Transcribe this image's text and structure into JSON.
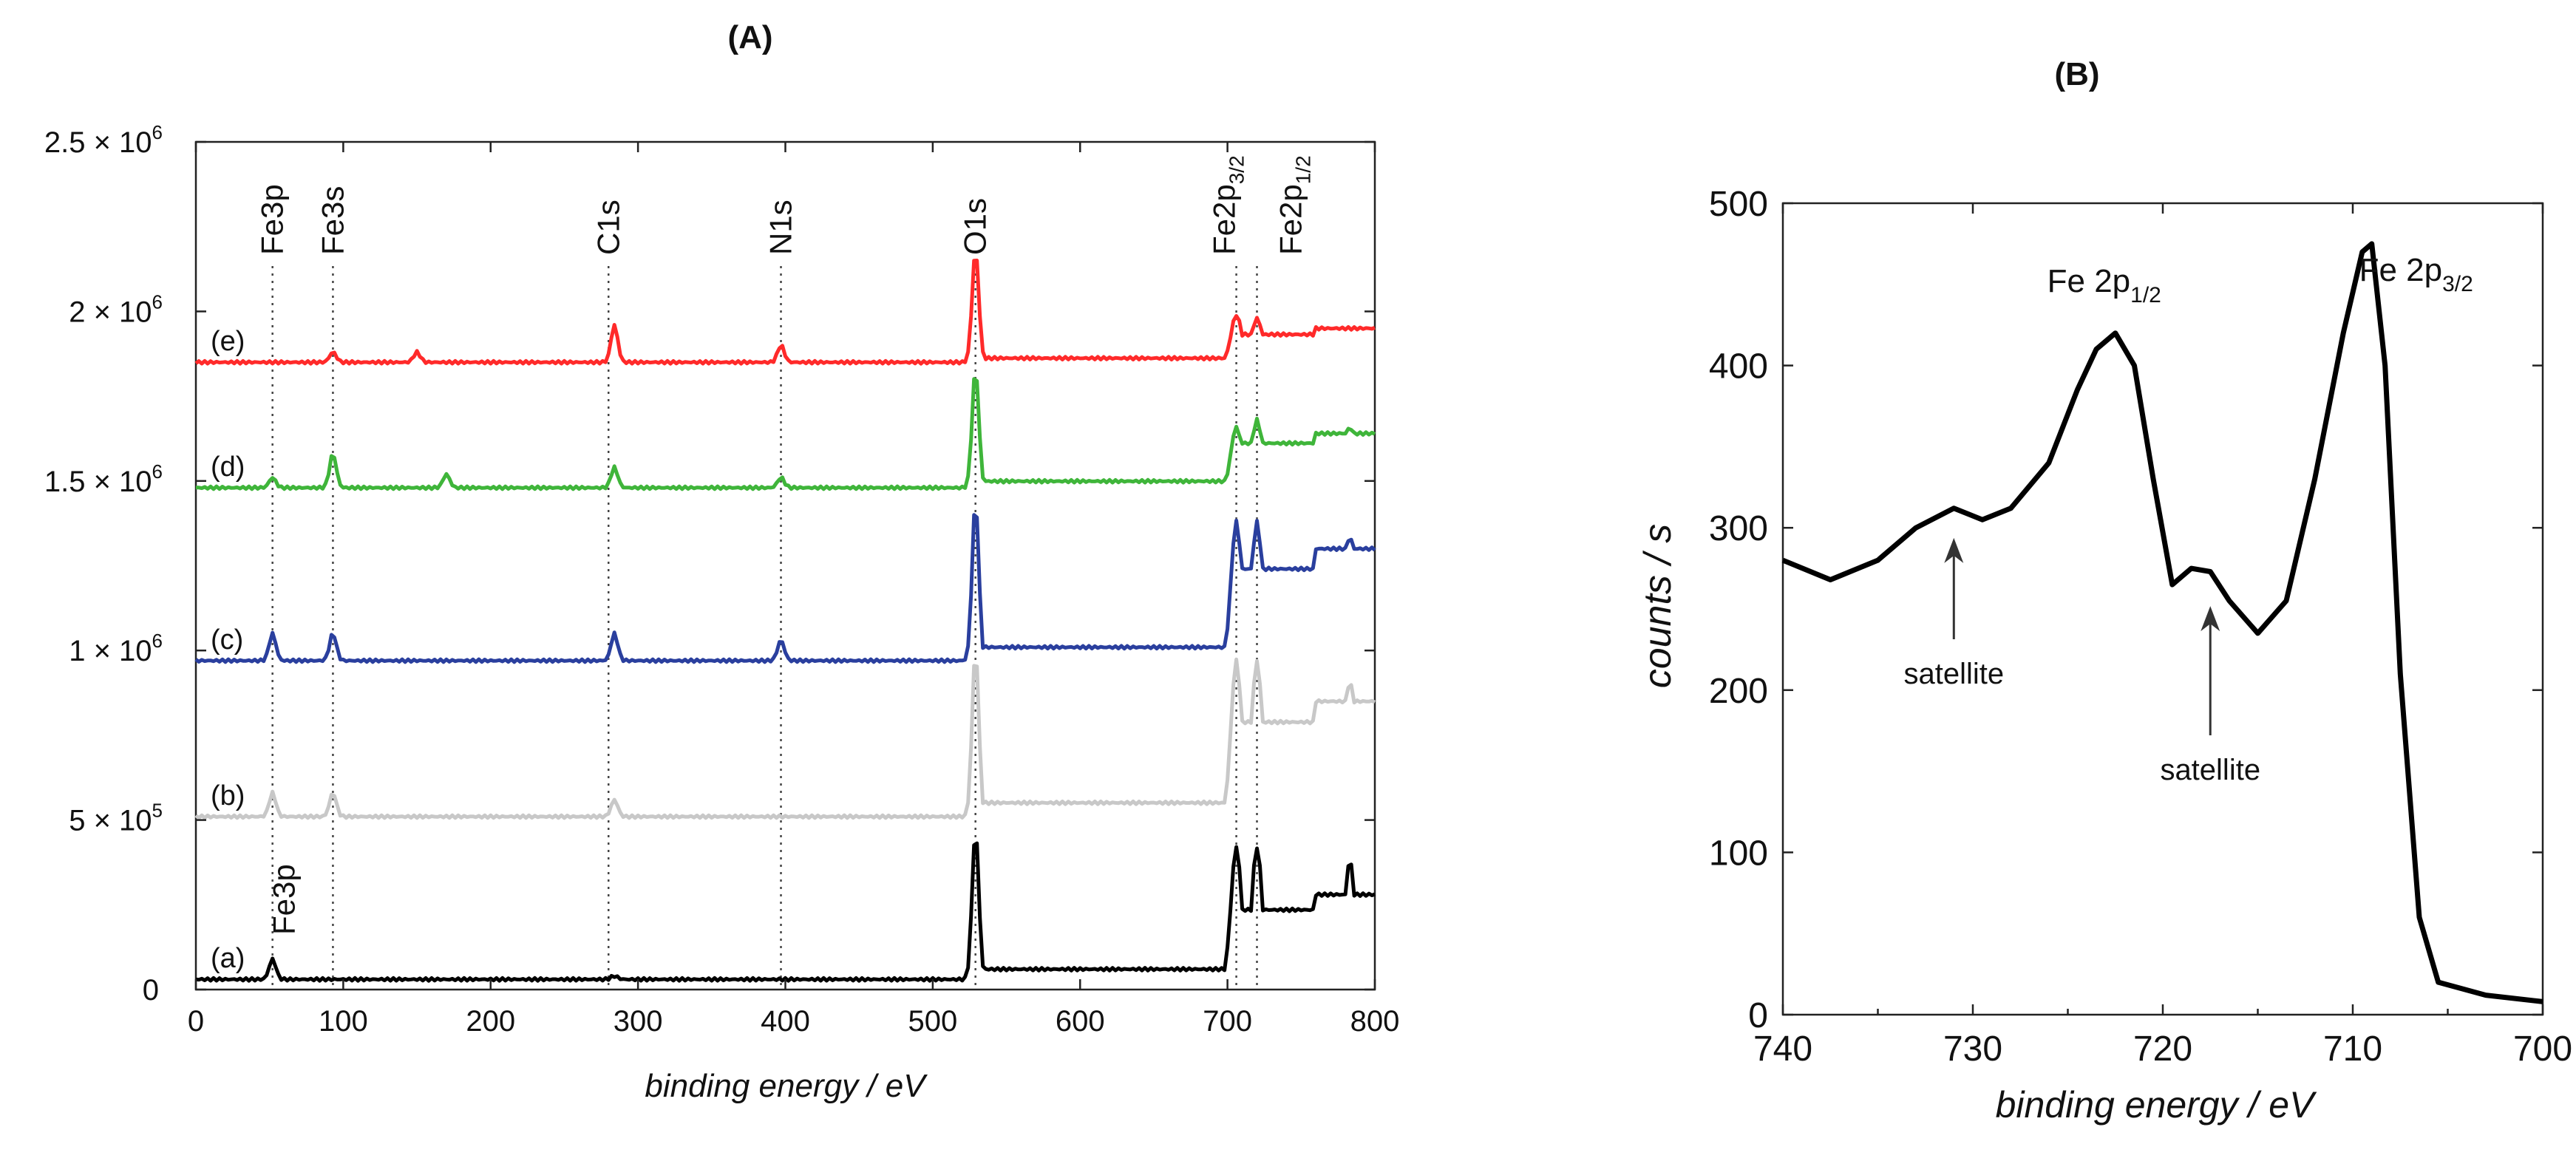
{
  "chart_data": [
    {
      "panel": "(A)",
      "type": "line",
      "xlabel": "binding energy / eV",
      "ylabel": "",
      "xlim": [
        0,
        800
      ],
      "ylim": [
        0,
        2500000
      ],
      "x_ticks": [
        "0",
        "100",
        "200",
        "300",
        "400",
        "500",
        "600",
        "700",
        "800"
      ],
      "y_ticks": [
        {
          "value": 0,
          "mant": "0",
          "exp": ""
        },
        {
          "value": 500000,
          "mant": "5 × 10",
          "exp": "5"
        },
        {
          "value": 1000000,
          "mant": "1 × 10",
          "exp": "6"
        },
        {
          "value": 1500000,
          "mant": "1.5 × 10",
          "exp": "6"
        },
        {
          "value": 2000000,
          "mant": "2 × 10",
          "exp": "6"
        },
        {
          "value": 2500000,
          "mant": "2.5 × 10",
          "exp": "6"
        }
      ],
      "peak_labels": [
        {
          "x": 52,
          "text": "Fe3p",
          "sub": ""
        },
        {
          "x": 93,
          "text": "Fe3s",
          "sub": ""
        },
        {
          "x": 280,
          "text": "C1s",
          "sub": ""
        },
        {
          "x": 397,
          "text": "N1s",
          "sub": ""
        },
        {
          "x": 529,
          "text": "O1s",
          "sub": ""
        },
        {
          "x": 706,
          "text": "Fe2p",
          "sub": "3/2"
        },
        {
          "x": 720,
          "text": "Fe2p",
          "sub": "1/2"
        }
      ],
      "extra_label": {
        "x": 52,
        "text": "Fe3p"
      },
      "series": [
        {
          "name": "(a)",
          "color": "#000000",
          "baseline": 30000,
          "step_after_700": 280000,
          "peaks": [
            [
              52,
              90000
            ],
            [
              93,
              25000
            ],
            [
              284,
              40000
            ],
            [
              529,
              470000
            ],
            [
              706,
              420000
            ],
            [
              720,
              420000
            ],
            [
              783,
              380000
            ]
          ]
        },
        {
          "name": "(b)",
          "color": "#c8c8c8",
          "baseline": 510000,
          "step_after_700": 850000,
          "peaks": [
            [
              52,
              580000
            ],
            [
              93,
              580000
            ],
            [
              284,
              560000
            ],
            [
              529,
              1000000
            ],
            [
              706,
              970000
            ],
            [
              720,
              970000
            ],
            [
              783,
              910000
            ]
          ]
        },
        {
          "name": "(c)",
          "color": "#2a3f9e",
          "baseline": 970000,
          "step_after_700": 1300000,
          "peaks": [
            [
              52,
              1050000
            ],
            [
              93,
              1050000
            ],
            [
              284,
              1050000
            ],
            [
              397,
              1030000
            ],
            [
              529,
              1440000
            ],
            [
              706,
              1380000
            ],
            [
              720,
              1380000
            ],
            [
              783,
              1340000
            ]
          ]
        },
        {
          "name": "(d)",
          "color": "#3fb53a",
          "baseline": 1480000,
          "step_after_700": 1640000,
          "peaks": [
            [
              52,
              1510000
            ],
            [
              93,
              1580000
            ],
            [
              170,
              1520000
            ],
            [
              284,
              1540000
            ],
            [
              397,
              1510000
            ],
            [
              529,
              1830000
            ],
            [
              706,
              1660000
            ],
            [
              720,
              1680000
            ],
            [
              783,
              1660000
            ]
          ]
        },
        {
          "name": "(e)",
          "color": "#ff2a2a",
          "baseline": 1850000,
          "step_after_700": 1950000,
          "peaks": [
            [
              93,
              1880000
            ],
            [
              150,
              1880000
            ],
            [
              284,
              1960000
            ],
            [
              397,
              1900000
            ],
            [
              529,
              2180000
            ],
            [
              706,
              1990000
            ],
            [
              720,
              1980000
            ]
          ]
        }
      ]
    },
    {
      "panel": "(B)",
      "type": "line",
      "xlabel": "binding energy / eV",
      "ylabel": "counts / s",
      "xlim": [
        740,
        700
      ],
      "ylim": [
        0,
        500
      ],
      "x_ticks": [
        "740",
        "730",
        "720",
        "710",
        "700"
      ],
      "y_ticks": [
        "0",
        "100",
        "200",
        "300",
        "400",
        "500"
      ],
      "series": [
        {
          "name": "Fe 2p spectrum",
          "color": "#000000",
          "x": [
            740,
            737.5,
            735,
            733,
            731,
            729.5,
            728,
            726,
            724.5,
            723.5,
            722.5,
            721.5,
            720.5,
            719.5,
            718.5,
            717.5,
            716.5,
            715,
            713.5,
            712,
            710.5,
            709.5,
            709,
            708.3,
            707.5,
            706.5,
            705.5,
            703,
            700
          ],
          "y": [
            280,
            268,
            280,
            300,
            312,
            305,
            312,
            340,
            385,
            410,
            420,
            400,
            330,
            265,
            275,
            273,
            255,
            235,
            255,
            330,
            420,
            470,
            475,
            400,
            210,
            60,
            20,
            12,
            8
          ]
        }
      ],
      "annotations": [
        {
          "text": "Fe 2p",
          "sub": "1/2",
          "x": 722.5
        },
        {
          "text": "Fe 2p",
          "sub": "3/2",
          "x": 709
        }
      ],
      "satellites": [
        {
          "text": "satellite",
          "x": 731,
          "arrow_tip_y": 312
        },
        {
          "text": "satellite",
          "x": 717.5,
          "arrow_tip_y": 270
        }
      ]
    }
  ]
}
